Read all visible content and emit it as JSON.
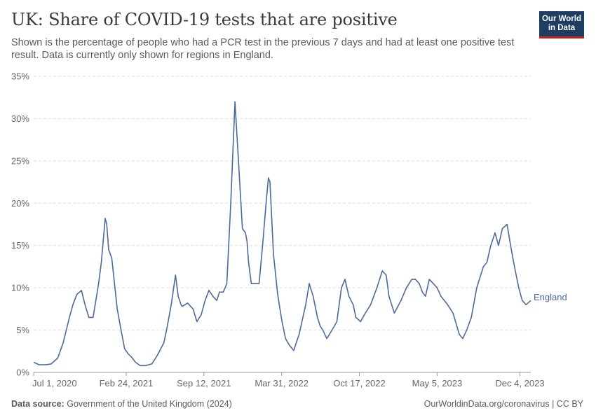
{
  "header": {
    "title": "UK: Share of COVID-19 tests that are positive",
    "subtitle": "Shown is the percentage of people who had a PCR test in the previous 7 days and had at least one positive test result. Data is currently only shown for regions in England.",
    "logo_line1": "Our World",
    "logo_line2": "in Data"
  },
  "footer": {
    "source_label": "Data source:",
    "source_text": "Government of the United Kingdom (2024)",
    "right_text": "OurWorldinData.org/coronavirus | CC BY"
  },
  "colors": {
    "series": "#4c6a9c",
    "logo_bg": "#1d3d63",
    "logo_accent": "#ce261e",
    "grid": "#dddddd"
  },
  "chart_data": {
    "type": "line",
    "title": "UK: Share of COVID-19 tests that are positive",
    "xlabel": "",
    "ylabel": "",
    "x_ticks": [
      "Jul 1, 2020",
      "Feb 24, 2021",
      "Sep 12, 2021",
      "Mar 31, 2022",
      "Oct 17, 2022",
      "May 5, 2023",
      "Dec 4, 2023"
    ],
    "y_ticks": [
      "0%",
      "5%",
      "10%",
      "15%",
      "20%",
      "25%",
      "30%",
      "35%"
    ],
    "ylim": [
      0,
      35
    ],
    "xlim": [
      "2020-07-01",
      "2024-01-01"
    ],
    "grid": "horizontal dashed",
    "series": [
      {
        "name": "England",
        "x": [
          "2020-07-01",
          "2020-07-15",
          "2020-08-01",
          "2020-08-15",
          "2020-09-01",
          "2020-09-15",
          "2020-10-01",
          "2020-10-10",
          "2020-10-20",
          "2020-11-01",
          "2020-11-10",
          "2020-11-20",
          "2020-12-01",
          "2020-12-08",
          "2020-12-15",
          "2020-12-22",
          "2021-01-01",
          "2021-01-05",
          "2021-01-10",
          "2021-01-18",
          "2021-01-25",
          "2021-02-01",
          "2021-02-10",
          "2021-02-20",
          "2021-03-01",
          "2021-03-10",
          "2021-03-20",
          "2021-04-01",
          "2021-04-15",
          "2021-05-01",
          "2021-05-15",
          "2021-06-01",
          "2021-06-10",
          "2021-06-20",
          "2021-07-01",
          "2021-07-08",
          "2021-07-15",
          "2021-07-18",
          "2021-07-25",
          "2021-08-01",
          "2021-08-15",
          "2021-08-25",
          "2021-09-05",
          "2021-09-15",
          "2021-09-25",
          "2021-10-05",
          "2021-10-15",
          "2021-10-22",
          "2021-11-01",
          "2021-11-10",
          "2021-11-20",
          "2021-12-01",
          "2021-12-10",
          "2021-12-20",
          "2021-12-28",
          "2022-01-01",
          "2022-01-05",
          "2022-01-12",
          "2022-01-20",
          "2022-02-01",
          "2022-02-10",
          "2022-02-20",
          "2022-02-25",
          "2022-03-01",
          "2022-03-10",
          "2022-03-20",
          "2022-03-25",
          "2022-04-01",
          "2022-04-10",
          "2022-04-20",
          "2022-05-01",
          "2022-05-15",
          "2022-06-01",
          "2022-06-10",
          "2022-06-20",
          "2022-07-01",
          "2022-07-08",
          "2022-07-15",
          "2022-07-25",
          "2022-08-05",
          "2022-08-20",
          "2022-09-01",
          "2022-09-10",
          "2022-09-20",
          "2022-10-01",
          "2022-10-08",
          "2022-10-20",
          "2022-11-01",
          "2022-11-15",
          "2022-12-01",
          "2022-12-15",
          "2022-12-25",
          "2023-01-01",
          "2023-01-15",
          "2023-02-01",
          "2023-02-15",
          "2023-03-01",
          "2023-03-10",
          "2023-03-20",
          "2023-03-28",
          "2023-04-05",
          "2023-04-15",
          "2023-04-25",
          "2023-05-05",
          "2023-05-15",
          "2023-06-01",
          "2023-06-15",
          "2023-07-01",
          "2023-07-10",
          "2023-07-20",
          "2023-08-01",
          "2023-08-15",
          "2023-09-01",
          "2023-09-10",
          "2023-09-20",
          "2023-10-01",
          "2023-10-10",
          "2023-10-20",
          "2023-11-01",
          "2023-11-10",
          "2023-11-20",
          "2023-12-01",
          "2023-12-10",
          "2023-12-20",
          "2024-01-01"
        ],
        "values": [
          1.2,
          0.9,
          0.9,
          1.0,
          1.7,
          3.5,
          6.5,
          8.0,
          9.2,
          9.7,
          8.0,
          6.5,
          6.5,
          8.5,
          10.5,
          13.0,
          18.2,
          17.5,
          14.5,
          13.5,
          10.5,
          7.5,
          5.2,
          2.8,
          2.2,
          1.8,
          1.2,
          0.8,
          0.8,
          1.0,
          2.0,
          3.5,
          5.5,
          8.0,
          11.5,
          9.0,
          8.0,
          7.8,
          8.0,
          8.2,
          7.5,
          6.0,
          6.8,
          8.5,
          9.7,
          9.0,
          8.5,
          9.5,
          9.5,
          10.5,
          20.0,
          32.0,
          25.0,
          17.0,
          16.5,
          15.5,
          13.0,
          10.5,
          10.5,
          10.5,
          15.0,
          20.5,
          23.0,
          22.5,
          14.0,
          9.5,
          8.0,
          6.0,
          4.0,
          3.2,
          2.6,
          4.5,
          8.0,
          10.5,
          9.0,
          6.5,
          5.5,
          5.0,
          4.0,
          4.8,
          6.0,
          10.0,
          11.0,
          9.0,
          8.0,
          6.5,
          6.0,
          7.0,
          8.0,
          10.0,
          12.0,
          11.5,
          9.0,
          7.0,
          8.5,
          10.0,
          11.0,
          11.0,
          10.5,
          9.5,
          9.0,
          11.0,
          10.5,
          10.0,
          9.0,
          8.0,
          7.0,
          4.5,
          4.0,
          5.0,
          6.5,
          10.0,
          12.5,
          13.0,
          15.0,
          16.5,
          15.0,
          17.0,
          17.5,
          15.0,
          12.5,
          10.0,
          8.5,
          8.0,
          8.5
        ]
      }
    ]
  }
}
